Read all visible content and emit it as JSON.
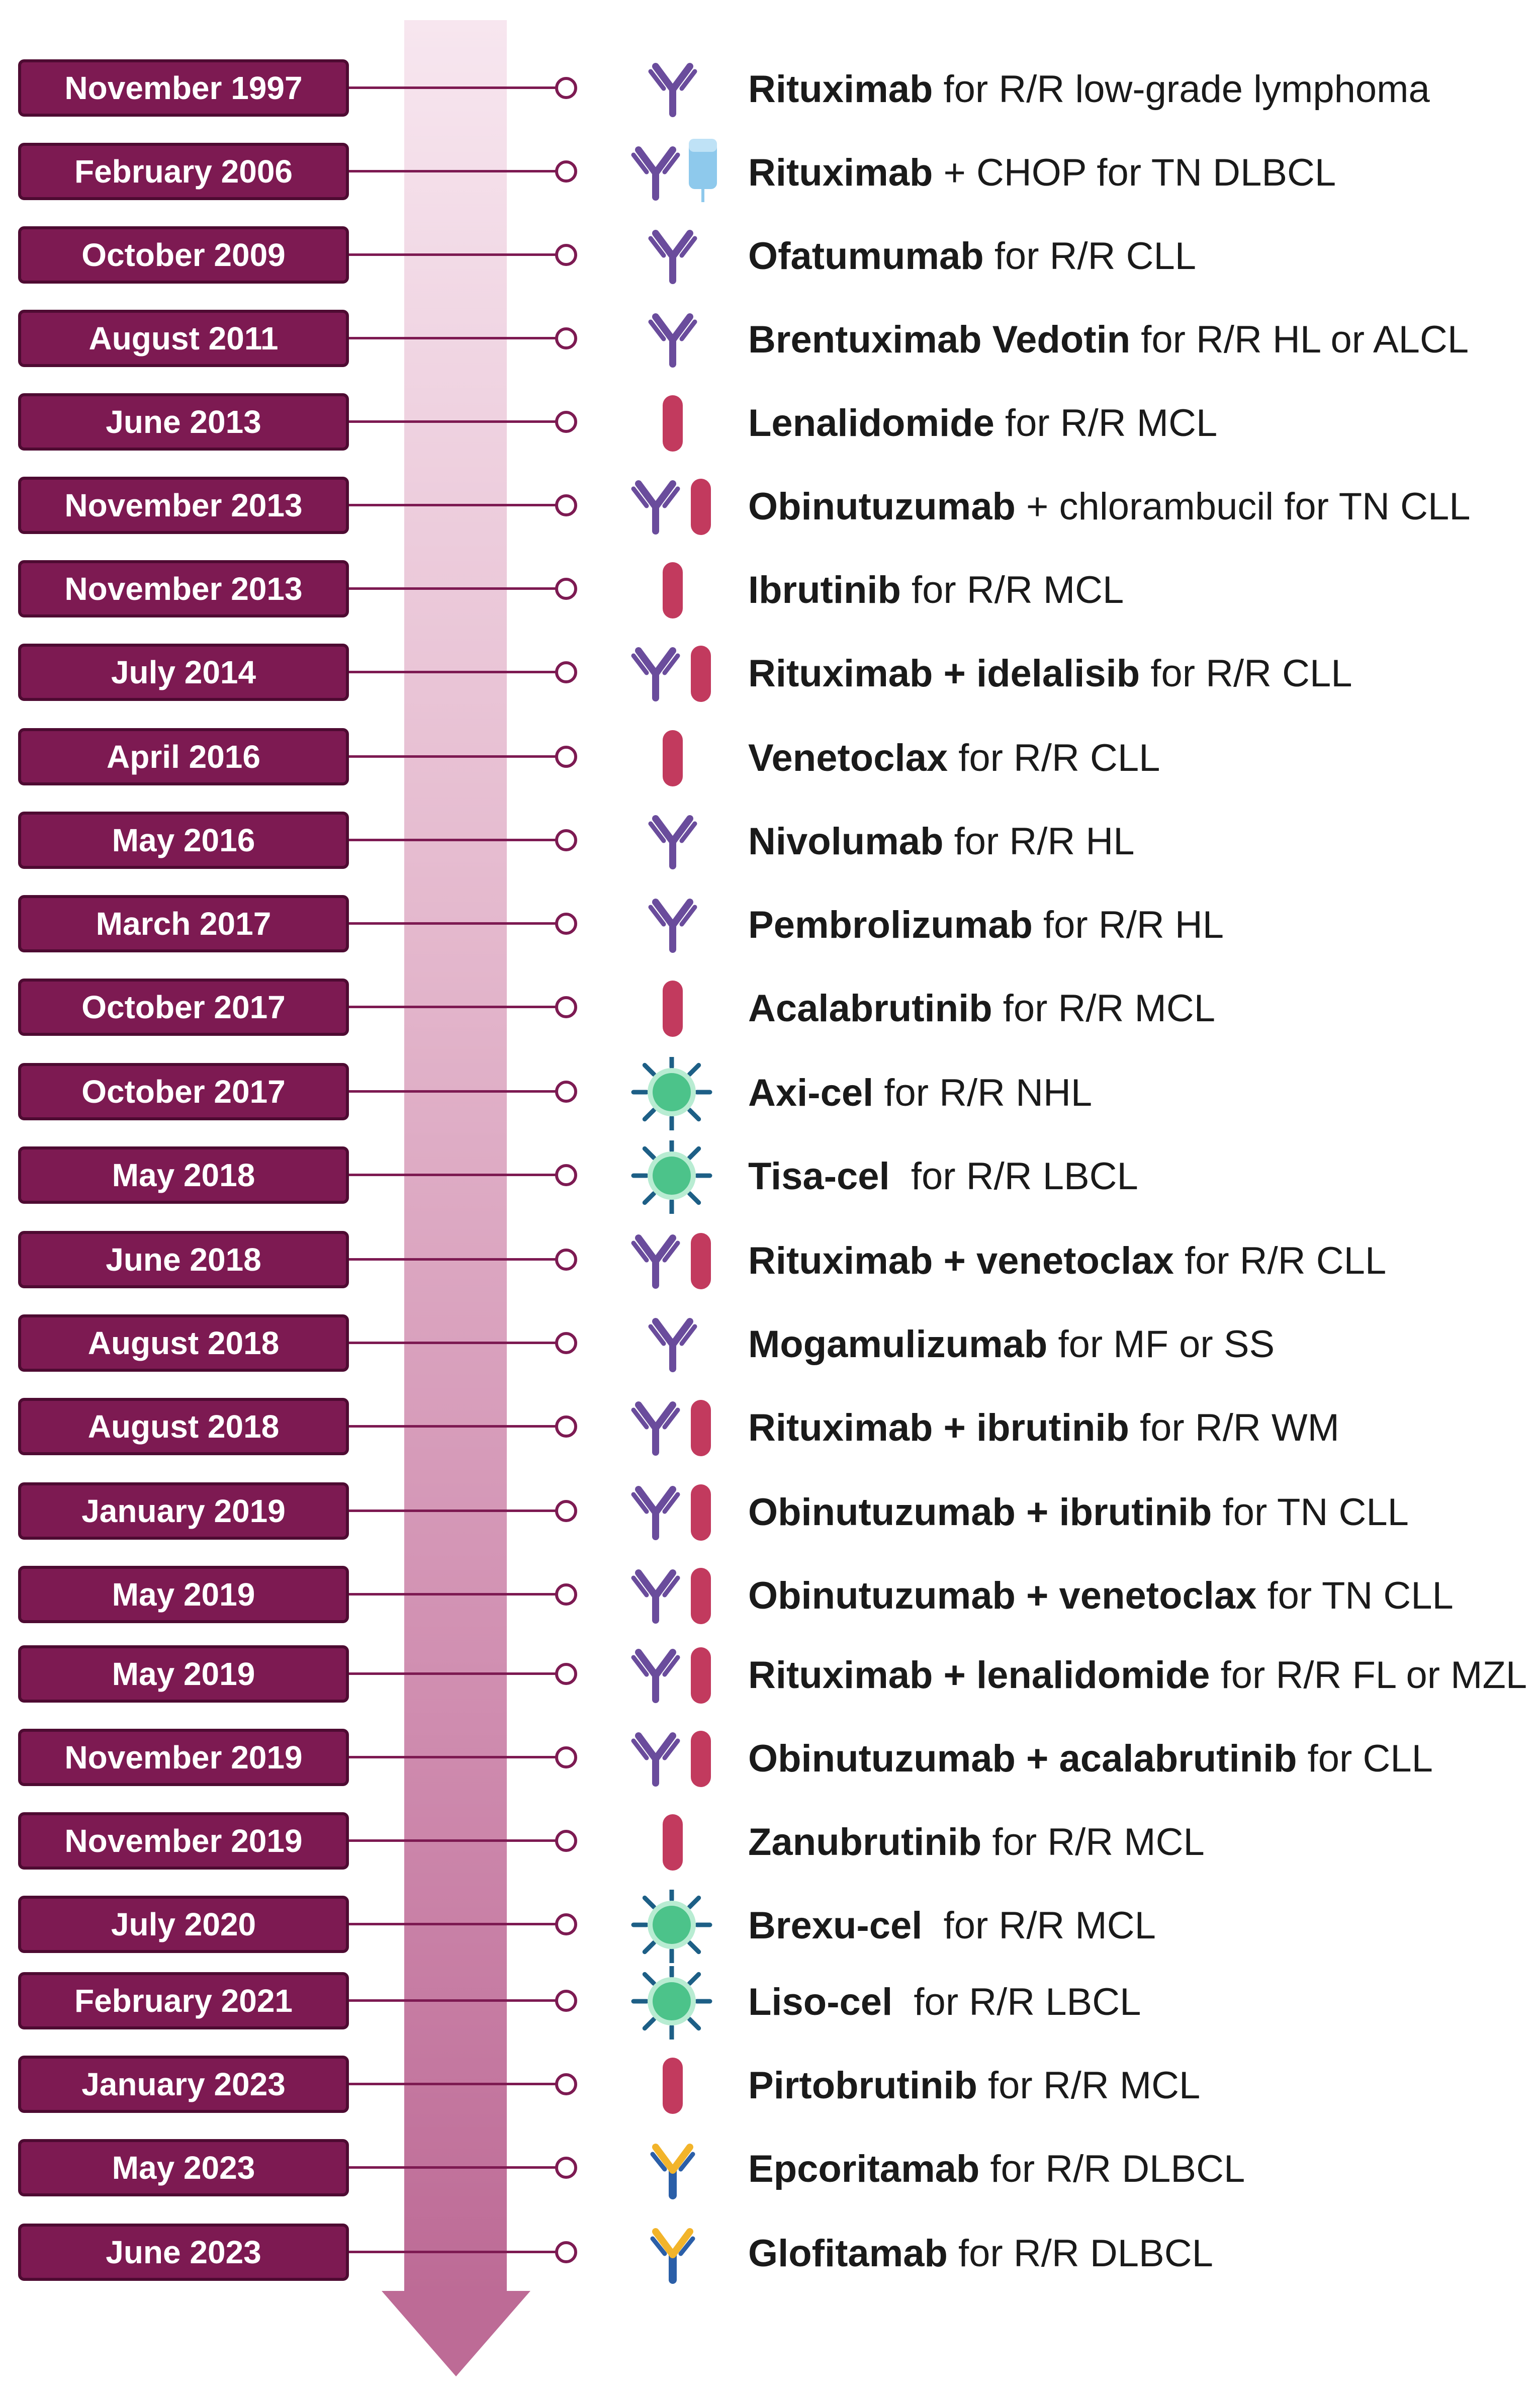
{
  "colors": {
    "date_box": "#7d1a52",
    "date_box_border": "#4e0b32",
    "connector": "#7d1a52",
    "arrow_top": "#f7e6ef",
    "arrow_bottom": "#bd6b96",
    "antibody": "#6a4c9c",
    "bispecific_arm": "#f2b42a",
    "bispecific_body": "#2b5fa8",
    "pill": "#c23a5e",
    "car_t_cell": "#4cc38a",
    "iv_bag": "#8ec9ec"
  },
  "milestones": [
    {
      "date": "November 1997",
      "drug": "Rituximab",
      "indication": " for R/R low-grade lymphoma",
      "icons": [
        "antibody-icon"
      ]
    },
    {
      "date": "February 2006",
      "drug": "Rituximab",
      "indication": " + CHOP for TN DLBCL",
      "icons": [
        "antibody-icon",
        "iv-bag-icon"
      ]
    },
    {
      "date": "October 2009",
      "drug": "Ofatumumab",
      "indication": " for R/R CLL",
      "icons": [
        "antibody-icon"
      ]
    },
    {
      "date": "August 2011",
      "drug": "Brentuximab Vedotin",
      "indication": " for R/R HL or ALCL",
      "icons": [
        "antibody-icon"
      ]
    },
    {
      "date": "June 2013",
      "drug": "Lenalidomide",
      "indication": " for R/R MCL",
      "icons": [
        "pill-icon"
      ]
    },
    {
      "date": "November 2013",
      "drug": "Obinutuzumab",
      "indication": " + chlorambucil for TN CLL",
      "icons": [
        "antibody-icon",
        "pill-icon"
      ]
    },
    {
      "date": "November 2013",
      "drug": "Ibrutinib",
      "indication": " for R/R MCL",
      "icons": [
        "pill-icon"
      ]
    },
    {
      "date": "July 2014",
      "drug": "Rituximab + idelalisib",
      "indication": " for R/R CLL",
      "icons": [
        "antibody-icon",
        "pill-icon"
      ]
    },
    {
      "date": "April 2016",
      "drug": "Venetoclax",
      "indication": " for R/R CLL",
      "icons": [
        "pill-icon"
      ]
    },
    {
      "date": "May 2016",
      "drug": "Nivolumab",
      "indication": " for R/R HL",
      "icons": [
        "antibody-icon"
      ]
    },
    {
      "date": "March 2017",
      "drug": "Pembrolizumab",
      "indication": " for R/R HL",
      "icons": [
        "antibody-icon"
      ]
    },
    {
      "date": "October 2017",
      "drug": "Acalabrutinib",
      "indication": " for R/R MCL",
      "icons": [
        "pill-icon"
      ]
    },
    {
      "date": "October 2017",
      "drug": "Axi-cel",
      "indication": " for R/R NHL",
      "icons": [
        "car-t-cell-icon"
      ]
    },
    {
      "date": "May 2018",
      "drug": "Tisa-cel",
      "indication": "  for R/R LBCL",
      "icons": [
        "car-t-cell-icon"
      ]
    },
    {
      "date": "June 2018",
      "drug": "Rituximab + venetoclax",
      "indication": " for R/R CLL",
      "icons": [
        "antibody-icon",
        "pill-icon"
      ]
    },
    {
      "date": "August 2018",
      "drug": "Mogamulizumab",
      "indication": " for MF or SS",
      "icons": [
        "antibody-icon"
      ]
    },
    {
      "date": "August 2018",
      "drug": "Rituximab + ibrutinib",
      "indication": " for R/R WM",
      "icons": [
        "antibody-icon",
        "pill-icon"
      ]
    },
    {
      "date": "January 2019",
      "drug": "Obinutuzumab + ibrutinib",
      "indication": " for TN CLL",
      "icons": [
        "antibody-icon",
        "pill-icon"
      ]
    },
    {
      "date": "May 2019",
      "drug": "Obinutuzumab + venetoclax",
      "indication": " for TN CLL",
      "icons": [
        "antibody-icon",
        "pill-icon"
      ]
    },
    {
      "date": "May 2019",
      "drug": "Rituximab + lenalidomide",
      "indication": " for R/R FL or MZL",
      "icons": [
        "antibody-icon",
        "pill-icon"
      ]
    },
    {
      "date": "November 2019",
      "drug": "Obinutuzumab + acalabrutinib",
      "indication": " for CLL",
      "icons": [
        "antibody-icon",
        "pill-icon"
      ]
    },
    {
      "date": "November 2019",
      "drug": "Zanubrutinib",
      "indication": " for R/R MCL",
      "icons": [
        "pill-icon"
      ]
    },
    {
      "date": "July 2020",
      "drug": "Brexu-cel",
      "indication": "  for R/R MCL",
      "icons": [
        "car-t-cell-icon"
      ]
    },
    {
      "date": "February 2021",
      "drug": "Liso-cel",
      "indication": "  for R/R LBCL",
      "icons": [
        "car-t-cell-icon"
      ]
    },
    {
      "date": "January 2023",
      "drug": "Pirtobrutinib",
      "indication": " for R/R MCL",
      "icons": [
        "pill-icon"
      ]
    },
    {
      "date": "May 2023",
      "drug": "Epcoritamab",
      "indication": " for R/R DLBCL",
      "icons": [
        "bispecific-antibody-icon"
      ]
    },
    {
      "date": "June 2023",
      "drug": "Glofitamab",
      "indication": " for R/R DLBCL",
      "icons": [
        "bispecific-antibody-icon"
      ]
    }
  ]
}
